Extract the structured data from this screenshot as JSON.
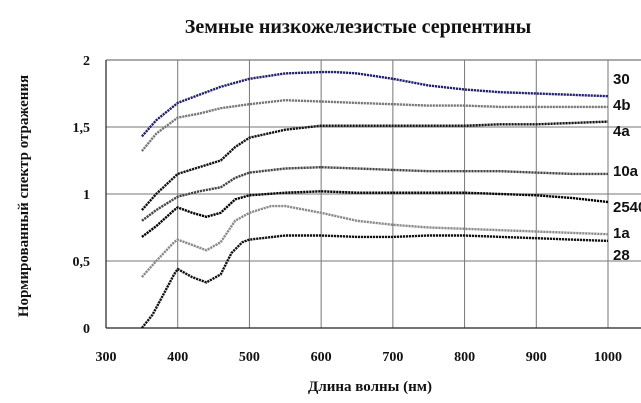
{
  "chart_data": {
    "type": "line",
    "title": "Земные низкожелезистые серпентины",
    "xlabel": "Длина волны (нм)",
    "ylabel": "Нормированный спектр отражения",
    "xlim": [
      300,
      1000
    ],
    "ylim": [
      0,
      2
    ],
    "x_ticks": [
      "300",
      "400",
      "500",
      "600",
      "700",
      "800",
      "900",
      "1000"
    ],
    "y_ticks": [
      "0",
      "0,5",
      "1",
      "1,5",
      "2"
    ],
    "grid": true,
    "series": [
      {
        "name": "30",
        "color": "#1f1f6b",
        "points": [
          [
            350,
            1.43
          ],
          [
            370,
            1.55
          ],
          [
            400,
            1.68
          ],
          [
            430,
            1.74
          ],
          [
            460,
            1.8
          ],
          [
            500,
            1.86
          ],
          [
            550,
            1.9
          ],
          [
            600,
            1.91
          ],
          [
            620,
            1.91
          ],
          [
            650,
            1.9
          ],
          [
            700,
            1.86
          ],
          [
            750,
            1.81
          ],
          [
            800,
            1.78
          ],
          [
            850,
            1.76
          ],
          [
            900,
            1.75
          ],
          [
            950,
            1.74
          ],
          [
            1000,
            1.73
          ]
        ]
      },
      {
        "name": "4b",
        "color": "#777777",
        "points": [
          [
            350,
            1.32
          ],
          [
            370,
            1.45
          ],
          [
            400,
            1.57
          ],
          [
            430,
            1.6
          ],
          [
            460,
            1.64
          ],
          [
            500,
            1.67
          ],
          [
            550,
            1.7
          ],
          [
            600,
            1.69
          ],
          [
            650,
            1.68
          ],
          [
            700,
            1.67
          ],
          [
            750,
            1.66
          ],
          [
            800,
            1.66
          ],
          [
            850,
            1.65
          ],
          [
            900,
            1.65
          ],
          [
            950,
            1.65
          ],
          [
            1000,
            1.65
          ]
        ]
      },
      {
        "name": "4a",
        "color": "#111111",
        "points": [
          [
            350,
            0.88
          ],
          [
            370,
            1.0
          ],
          [
            400,
            1.15
          ],
          [
            430,
            1.2
          ],
          [
            460,
            1.25
          ],
          [
            480,
            1.35
          ],
          [
            500,
            1.42
          ],
          [
            550,
            1.48
          ],
          [
            600,
            1.51
          ],
          [
            650,
            1.51
          ],
          [
            700,
            1.51
          ],
          [
            750,
            1.51
          ],
          [
            800,
            1.51
          ],
          [
            850,
            1.52
          ],
          [
            900,
            1.52
          ],
          [
            950,
            1.53
          ],
          [
            1000,
            1.54
          ]
        ]
      },
      {
        "name": "10a",
        "color": "#444444",
        "points": [
          [
            350,
            0.8
          ],
          [
            370,
            0.88
          ],
          [
            400,
            0.98
          ],
          [
            430,
            1.02
          ],
          [
            460,
            1.05
          ],
          [
            480,
            1.12
          ],
          [
            500,
            1.16
          ],
          [
            550,
            1.19
          ],
          [
            600,
            1.2
          ],
          [
            650,
            1.19
          ],
          [
            700,
            1.18
          ],
          [
            750,
            1.17
          ],
          [
            800,
            1.17
          ],
          [
            850,
            1.17
          ],
          [
            900,
            1.16
          ],
          [
            950,
            1.15
          ],
          [
            1000,
            1.15
          ]
        ]
      },
      {
        "name": "2540",
        "color": "#000000",
        "points": [
          [
            350,
            0.68
          ],
          [
            370,
            0.76
          ],
          [
            395,
            0.88
          ],
          [
            400,
            0.9
          ],
          [
            420,
            0.86
          ],
          [
            440,
            0.83
          ],
          [
            460,
            0.86
          ],
          [
            480,
            0.96
          ],
          [
            500,
            0.99
          ],
          [
            550,
            1.01
          ],
          [
            600,
            1.02
          ],
          [
            650,
            1.01
          ],
          [
            700,
            1.01
          ],
          [
            750,
            1.01
          ],
          [
            800,
            1.01
          ],
          [
            850,
            1.0
          ],
          [
            900,
            0.99
          ],
          [
            950,
            0.97
          ],
          [
            1000,
            0.94
          ]
        ]
      },
      {
        "name": "1a",
        "color": "#8a8a8a",
        "points": [
          [
            350,
            0.38
          ],
          [
            370,
            0.5
          ],
          [
            395,
            0.64
          ],
          [
            400,
            0.66
          ],
          [
            420,
            0.62
          ],
          [
            440,
            0.58
          ],
          [
            460,
            0.64
          ],
          [
            480,
            0.8
          ],
          [
            500,
            0.86
          ],
          [
            530,
            0.91
          ],
          [
            550,
            0.91
          ],
          [
            600,
            0.86
          ],
          [
            650,
            0.8
          ],
          [
            700,
            0.77
          ],
          [
            750,
            0.75
          ],
          [
            800,
            0.74
          ],
          [
            850,
            0.73
          ],
          [
            900,
            0.72
          ],
          [
            950,
            0.71
          ],
          [
            1000,
            0.7
          ]
        ]
      },
      {
        "name": "28",
        "color": "#111111",
        "points": [
          [
            350,
            0.0
          ],
          [
            365,
            0.1
          ],
          [
            380,
            0.25
          ],
          [
            395,
            0.4
          ],
          [
            400,
            0.44
          ],
          [
            420,
            0.38
          ],
          [
            440,
            0.34
          ],
          [
            460,
            0.4
          ],
          [
            475,
            0.56
          ],
          [
            490,
            0.64
          ],
          [
            500,
            0.66
          ],
          [
            550,
            0.69
          ],
          [
            600,
            0.69
          ],
          [
            650,
            0.68
          ],
          [
            700,
            0.68
          ],
          [
            750,
            0.69
          ],
          [
            800,
            0.69
          ],
          [
            850,
            0.68
          ],
          [
            900,
            0.67
          ],
          [
            950,
            0.66
          ],
          [
            1000,
            0.65
          ]
        ]
      }
    ]
  }
}
